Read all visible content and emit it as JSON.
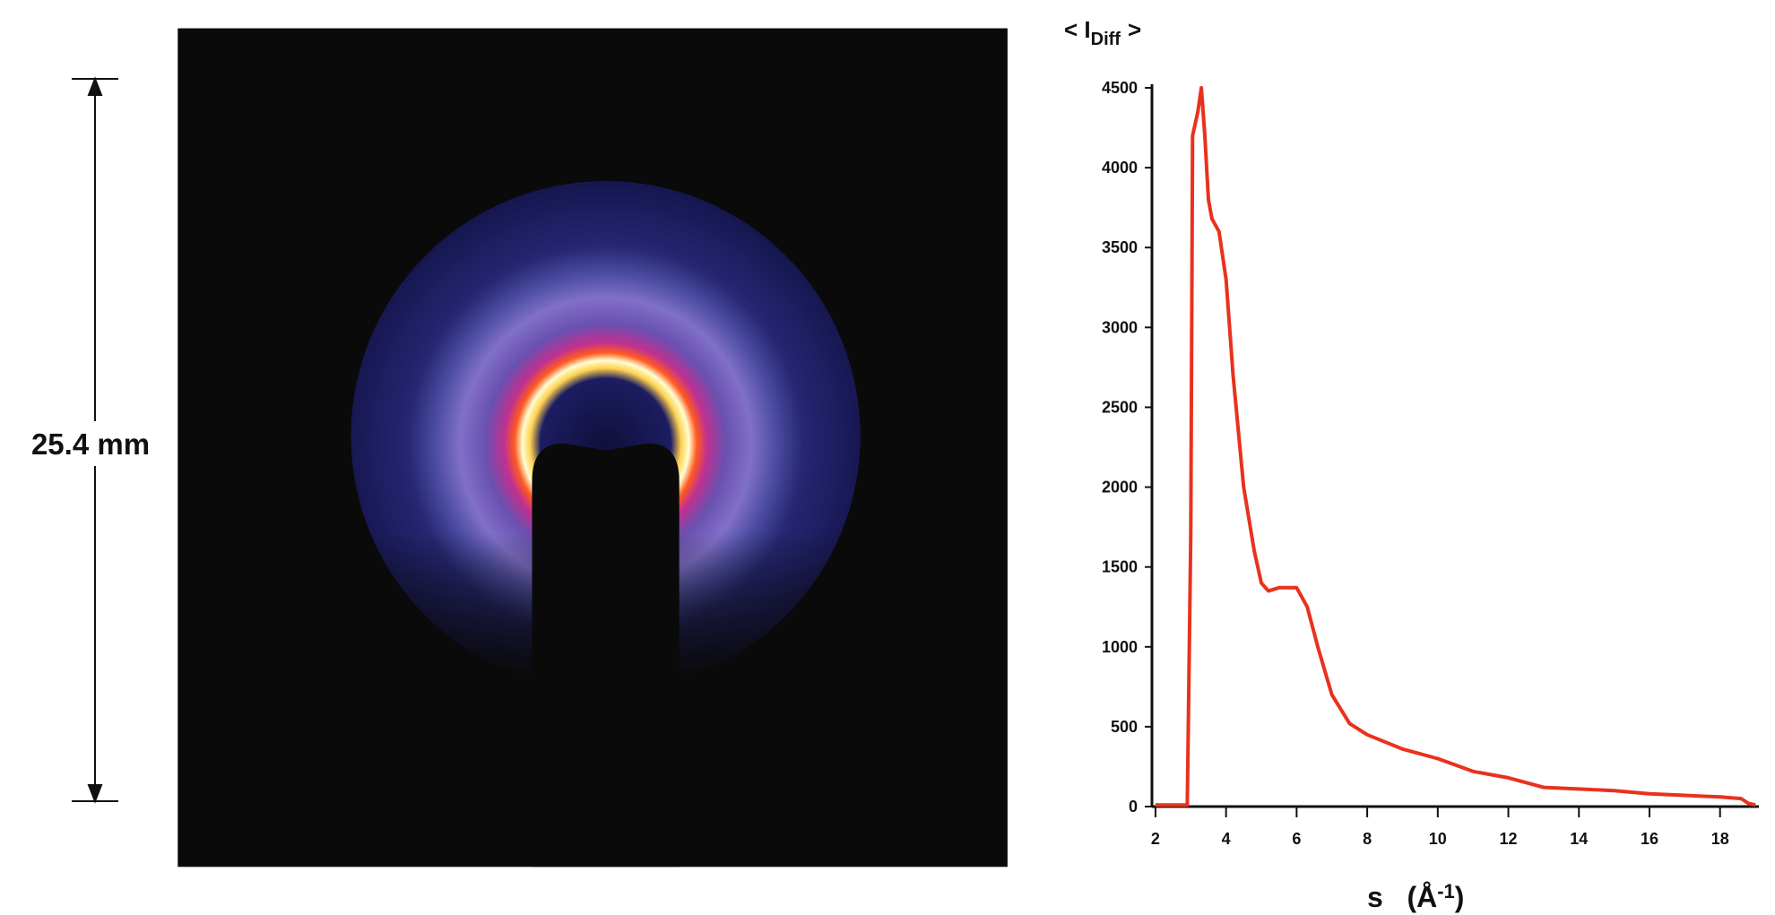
{
  "scale_bar_label": "25.4 mm",
  "chart_data": {
    "type": "line",
    "y_label": {
      "main": "< I",
      "sub": "Diff",
      "end": ">"
    },
    "x_label": {
      "main": "s   (Å",
      "sup": "-1",
      "end": ")"
    },
    "x": [
      2,
      2.9,
      3.0,
      3.05,
      3.2,
      3.3,
      3.4,
      3.5,
      3.6,
      3.8,
      4.0,
      4.2,
      4.5,
      4.8,
      5.0,
      5.2,
      5.5,
      6.0,
      6.3,
      6.6,
      7.0,
      7.5,
      8,
      9,
      10,
      11,
      12,
      13,
      14,
      15,
      16,
      17,
      18,
      18.6,
      18.8,
      19
    ],
    "values": [
      10,
      10,
      1700,
      4200,
      4350,
      4500,
      4200,
      3800,
      3680,
      3600,
      3300,
      2700,
      2000,
      1600,
      1400,
      1350,
      1370,
      1370,
      1250,
      1000,
      700,
      520,
      450,
      360,
      300,
      220,
      180,
      120,
      110,
      100,
      80,
      70,
      60,
      50,
      20,
      10
    ],
    "color": "#e8321e",
    "xlim": [
      1.9,
      19.1
    ],
    "ylim": [
      0,
      4500
    ],
    "xticks": [
      2,
      4,
      6,
      8,
      10,
      12,
      14,
      16,
      18
    ],
    "yticks": [
      0,
      500,
      1000,
      1500,
      2000,
      2500,
      3000,
      3500,
      4000,
      4500
    ]
  }
}
